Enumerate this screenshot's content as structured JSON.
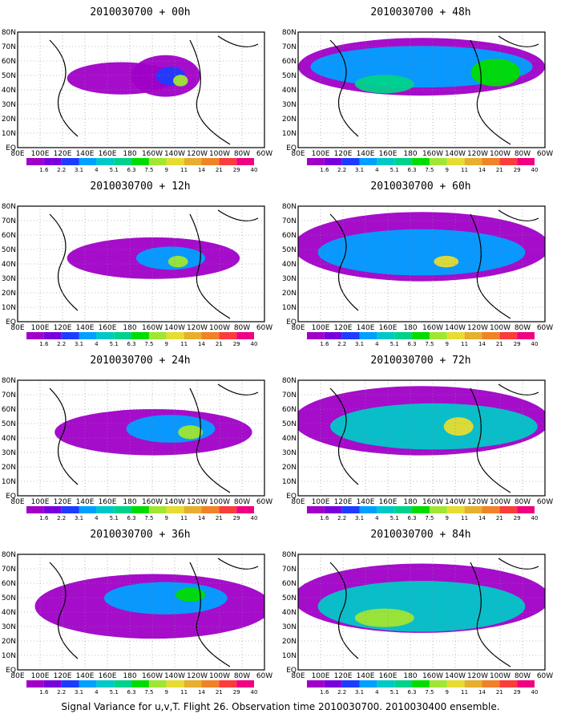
{
  "panels": [
    {
      "title": "2010030700 + 00h"
    },
    {
      "title": "2010030700 + 48h"
    },
    {
      "title": "2010030700 + 12h"
    },
    {
      "title": "2010030700 + 60h"
    },
    {
      "title": "2010030700 + 24h"
    },
    {
      "title": "2010030700 + 72h"
    },
    {
      "title": "2010030700 + 36h"
    },
    {
      "title": "2010030700 + 84h"
    }
  ],
  "lat_labels": [
    "80N",
    "70N",
    "60N",
    "50N",
    "40N",
    "30N",
    "20N",
    "10N",
    "EQ"
  ],
  "lon_labels": [
    "80E",
    "100E",
    "120E",
    "140E",
    "160E",
    "180",
    "160W",
    "140W",
    "120W",
    "100W",
    "80W",
    "60W"
  ],
  "colorbar": {
    "levels": [
      "1.6",
      "2.2",
      "3.1",
      "4",
      "5.1",
      "6.3",
      "7.5",
      "9",
      "11",
      "14",
      "21",
      "29",
      "40"
    ],
    "colors": [
      "#a000c8",
      "#7800dc",
      "#1e3cff",
      "#00a0ff",
      "#00c8c8",
      "#00d28c",
      "#00dc00",
      "#a0e632",
      "#e6dc32",
      "#e6af2d",
      "#f08228",
      "#fa3c3c",
      "#f00082"
    ]
  },
  "caption": "Signal Variance for u,v,T. Flight 26. Observation time 2010030700. 2010030400 ensemble."
}
